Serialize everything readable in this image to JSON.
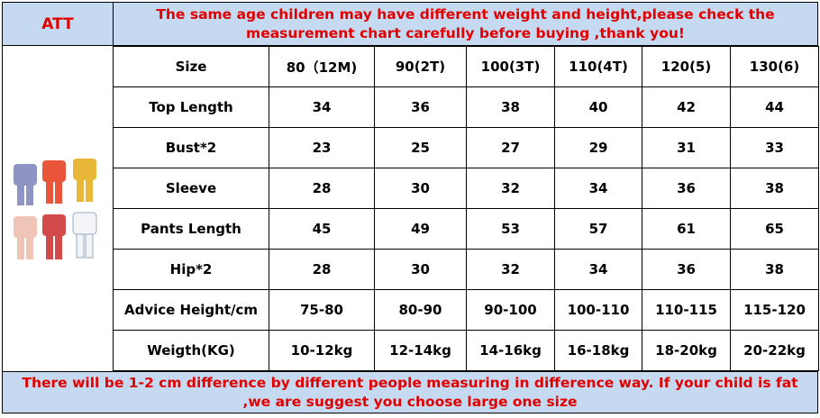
{
  "header": {
    "label": "ATT",
    "notice": "The same age children may have different weight and height,please check the measurement chart carefully before buying ,thank you!"
  },
  "table": {
    "columns": [
      "Size",
      "80（12M)",
      "90(2T)",
      "100(3T)",
      "110(4T)",
      "120(5)",
      "130(6)"
    ],
    "rows": [
      [
        "Top Length",
        34,
        36,
        38,
        40,
        42,
        44
      ],
      [
        "Bust*2",
        23,
        25,
        27,
        29,
        31,
        33
      ],
      [
        "Sleeve",
        28,
        30,
        32,
        34,
        36,
        38
      ],
      [
        "Pants Length",
        45,
        49,
        53,
        57,
        61,
        65
      ],
      [
        "Hip*2",
        28,
        30,
        32,
        34,
        36,
        38
      ],
      [
        "Advice Height/cm",
        "75-80",
        "80-90",
        "90-100",
        "100-110",
        "110-115",
        "115-120"
      ],
      [
        "Weigth(KG)",
        "10-12kg",
        "12-14kg",
        "14-16kg",
        "16-18kg",
        "18-20kg",
        "20-22kg"
      ]
    ]
  },
  "footer": {
    "notice": "There will be 1-2 cm difference by different people measuring in difference way. If your child is fat ,we are suggest you choose large one size"
  }
}
